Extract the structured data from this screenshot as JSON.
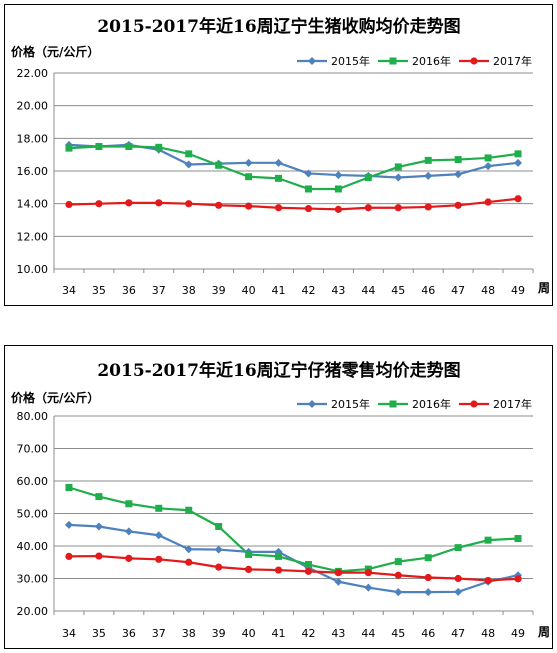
{
  "series_colors": {
    "2015年": "#4F81BD",
    "2016年": "#1FAE4B",
    "2017年": "#E31A1C"
  },
  "chart_data": [
    {
      "type": "line",
      "title": "2015-2017年近16周辽宁生猪收购均价走势图",
      "ylabel": "价格（元/公斤）",
      "xunit": "周",
      "ylim": [
        10,
        22
      ],
      "ytick_step": 2,
      "ytick_decimals": 2,
      "grid": true,
      "legend_position": "top-right",
      "categories": [
        "34",
        "35",
        "36",
        "37",
        "38",
        "39",
        "40",
        "41",
        "42",
        "43",
        "44",
        "45",
        "46",
        "47",
        "48",
        "49"
      ],
      "series": [
        {
          "name": "2015年",
          "marker": "diamond",
          "values": [
            17.6,
            17.5,
            17.6,
            17.3,
            16.4,
            16.45,
            16.5,
            16.5,
            15.85,
            15.75,
            15.7,
            15.6,
            15.7,
            15.8,
            16.3,
            16.5
          ]
        },
        {
          "name": "2016年",
          "marker": "square",
          "values": [
            17.4,
            17.5,
            17.5,
            17.45,
            17.05,
            16.35,
            15.65,
            15.55,
            14.9,
            14.9,
            15.6,
            16.25,
            16.65,
            16.7,
            16.8,
            17.05
          ]
        },
        {
          "name": "2017年",
          "marker": "circle",
          "values": [
            13.95,
            14.0,
            14.05,
            14.05,
            14.0,
            13.9,
            13.85,
            13.75,
            13.7,
            13.65,
            13.75,
            13.75,
            13.8,
            13.9,
            14.1,
            14.3
          ]
        }
      ]
    },
    {
      "type": "line",
      "title": "2015-2017年近16周辽宁仔猪零售均价走势图",
      "ylabel": "价格（元/公斤）",
      "xunit": "周",
      "ylim": [
        20,
        80
      ],
      "ytick_step": 10,
      "ytick_decimals": 2,
      "grid": true,
      "legend_position": "top-right",
      "categories": [
        "34",
        "35",
        "36",
        "37",
        "38",
        "39",
        "40",
        "41",
        "42",
        "43",
        "44",
        "45",
        "46",
        "47",
        "48",
        "49"
      ],
      "series": [
        {
          "name": "2015年",
          "marker": "diamond",
          "values": [
            46.5,
            46.0,
            44.5,
            43.3,
            39.0,
            38.9,
            38.2,
            38.2,
            33.3,
            29.0,
            27.2,
            25.8,
            25.8,
            25.9,
            29.0,
            31.0
          ]
        },
        {
          "name": "2016年",
          "marker": "square",
          "values": [
            58.0,
            55.2,
            53.0,
            51.6,
            51.0,
            46.0,
            37.4,
            36.8,
            34.3,
            32.2,
            32.9,
            35.2,
            36.4,
            39.5,
            41.8,
            42.3
          ]
        },
        {
          "name": "2017年",
          "marker": "circle",
          "values": [
            36.8,
            36.9,
            36.2,
            35.9,
            35.0,
            33.5,
            32.8,
            32.6,
            32.2,
            31.8,
            31.8,
            31.0,
            30.3,
            30.0,
            29.4,
            29.9
          ]
        }
      ]
    }
  ]
}
